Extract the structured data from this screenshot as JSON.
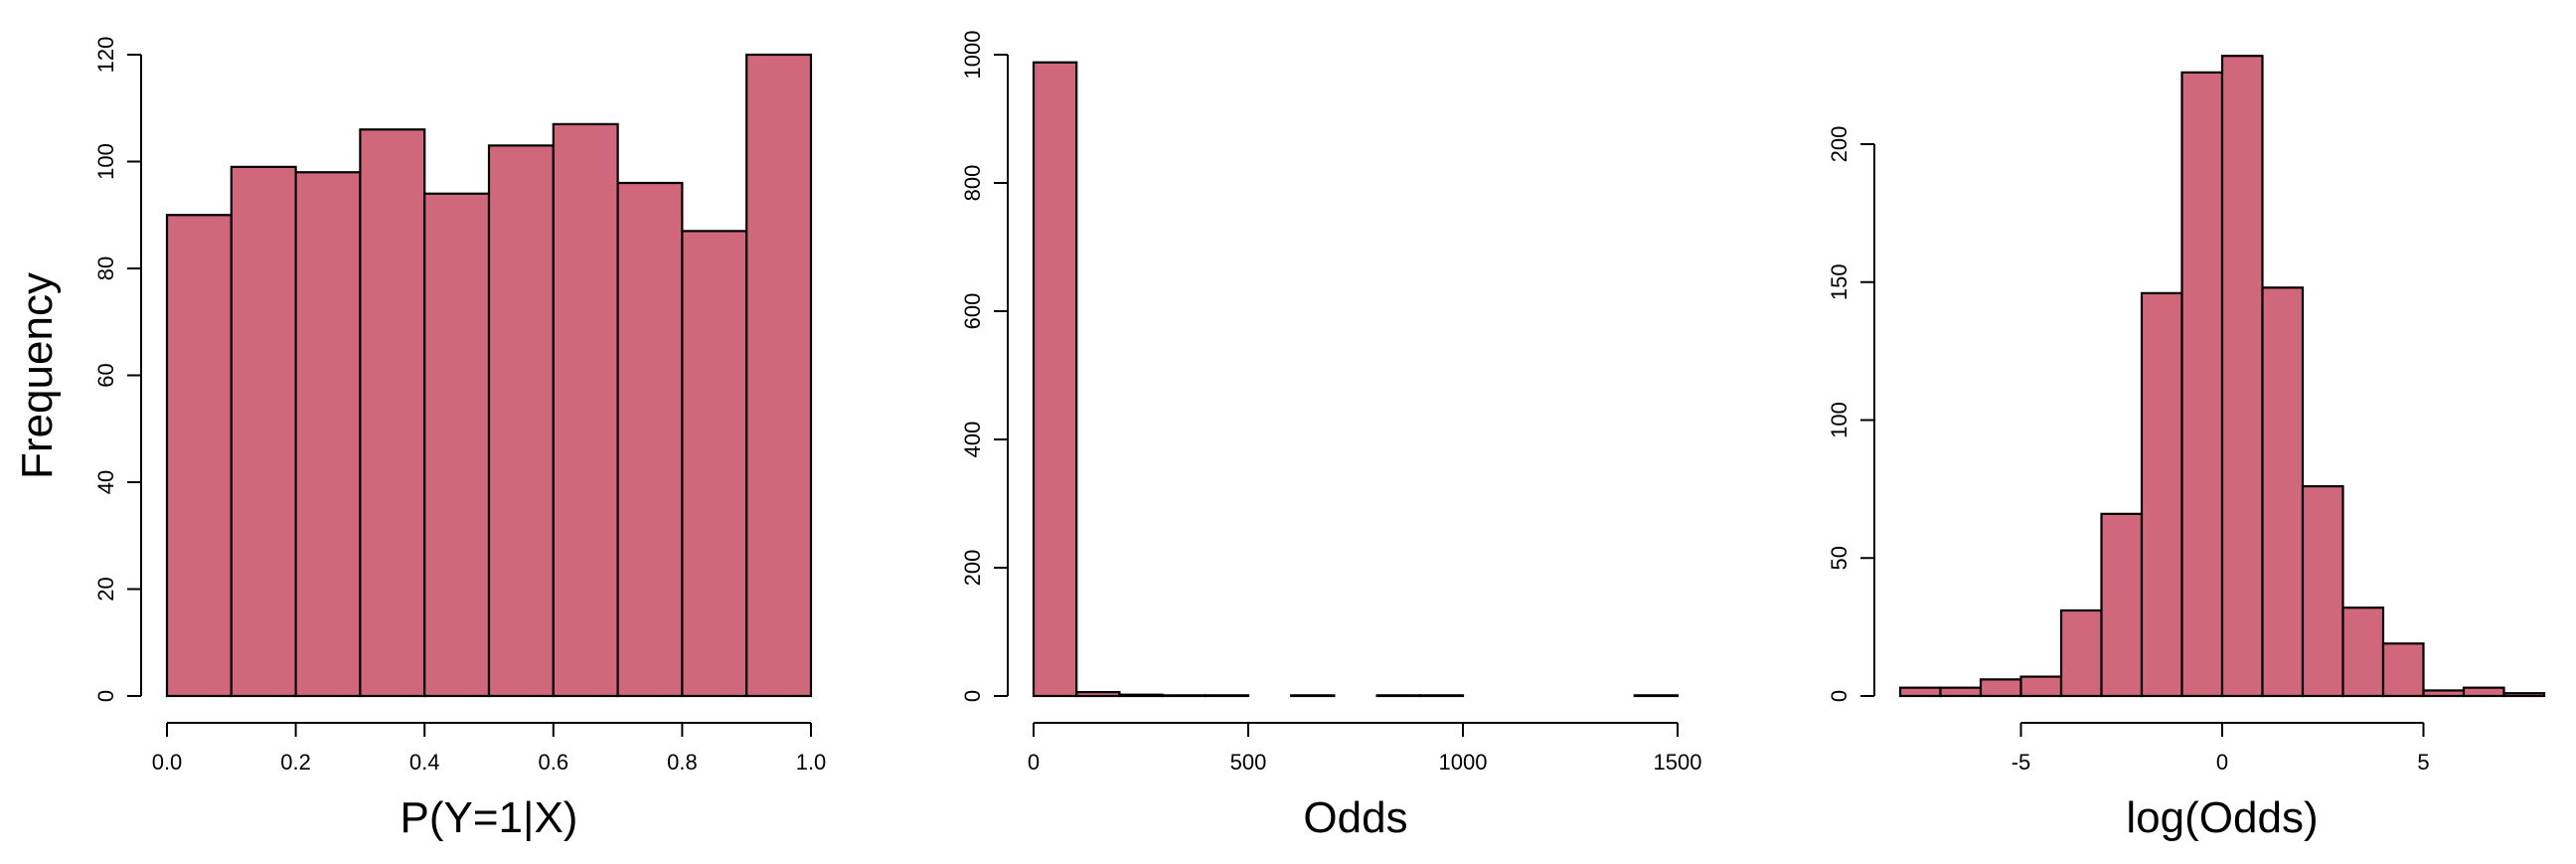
{
  "ylabel": "Frequency",
  "bar_color": "#D0677A",
  "chart_data": [
    {
      "type": "bar",
      "title": "",
      "xlabel": "P(Y=1|X)",
      "ylabel": "Frequency",
      "bin_edges": [
        0.0,
        0.1,
        0.2,
        0.3,
        0.4,
        0.5,
        0.6,
        0.7,
        0.8,
        0.9,
        1.0
      ],
      "values": [
        90,
        99,
        98,
        106,
        94,
        103,
        107,
        96,
        87,
        120
      ],
      "xlim": [
        0,
        1
      ],
      "ylim": [
        0,
        120
      ],
      "xticks": [
        {
          "value": 0,
          "label": "0.0"
        },
        {
          "value": 0.2,
          "label": "0.2"
        },
        {
          "value": 0.4,
          "label": "0.4"
        },
        {
          "value": 0.6,
          "label": "0.6"
        },
        {
          "value": 0.8,
          "label": "0.8"
        },
        {
          "value": 1.0,
          "label": "1.0"
        }
      ],
      "yticks": [
        {
          "value": 0,
          "label": "0"
        },
        {
          "value": 20,
          "label": "20"
        },
        {
          "value": 40,
          "label": "40"
        },
        {
          "value": 60,
          "label": "60"
        },
        {
          "value": 80,
          "label": "80"
        },
        {
          "value": 100,
          "label": "100"
        },
        {
          "value": 120,
          "label": "120"
        }
      ],
      "grid": false
    },
    {
      "type": "bar",
      "title": "",
      "xlabel": "Odds",
      "ylabel": "",
      "bin_edges": [
        0,
        100,
        200,
        300,
        400,
        500,
        600,
        700,
        800,
        900,
        1000,
        1100,
        1200,
        1300,
        1400,
        1500
      ],
      "values": [
        988,
        6,
        2,
        1,
        1,
        0,
        1,
        0,
        1,
        1,
        0,
        0,
        0,
        0,
        1
      ],
      "xlim": [
        0,
        1500
      ],
      "ylim": [
        0,
        1000
      ],
      "xticks": [
        {
          "value": 0,
          "label": "0"
        },
        {
          "value": 500,
          "label": "500"
        },
        {
          "value": 1000,
          "label": "1000"
        },
        {
          "value": 1500,
          "label": "1500"
        }
      ],
      "yticks": [
        {
          "value": 0,
          "label": "0"
        },
        {
          "value": 200,
          "label": "200"
        },
        {
          "value": 400,
          "label": "400"
        },
        {
          "value": 600,
          "label": "600"
        },
        {
          "value": 800,
          "label": "800"
        },
        {
          "value": 1000,
          "label": "1000"
        }
      ],
      "grid": false
    },
    {
      "type": "bar",
      "title": "",
      "xlabel": "log(Odds)",
      "ylabel": "",
      "bin_edges": [
        -8,
        -7,
        -6,
        -5,
        -4,
        -3,
        -2,
        -1,
        0,
        1,
        2,
        3,
        4,
        5,
        6,
        7,
        8
      ],
      "values": [
        3,
        3,
        6,
        7,
        31,
        66,
        146,
        226,
        232,
        148,
        76,
        32,
        19,
        2,
        3,
        1
      ],
      "xlim": [
        -8,
        8
      ],
      "ylim": [
        0,
        200
      ],
      "xticks": [
        {
          "value": -5,
          "label": "-5"
        },
        {
          "value": 0,
          "label": "0"
        },
        {
          "value": 5,
          "label": "5"
        }
      ],
      "yticks": [
        {
          "value": 0,
          "label": "0"
        },
        {
          "value": 50,
          "label": "50"
        },
        {
          "value": 100,
          "label": "100"
        },
        {
          "value": 150,
          "label": "150"
        },
        {
          "value": 200,
          "label": "200"
        }
      ],
      "grid": false
    }
  ]
}
